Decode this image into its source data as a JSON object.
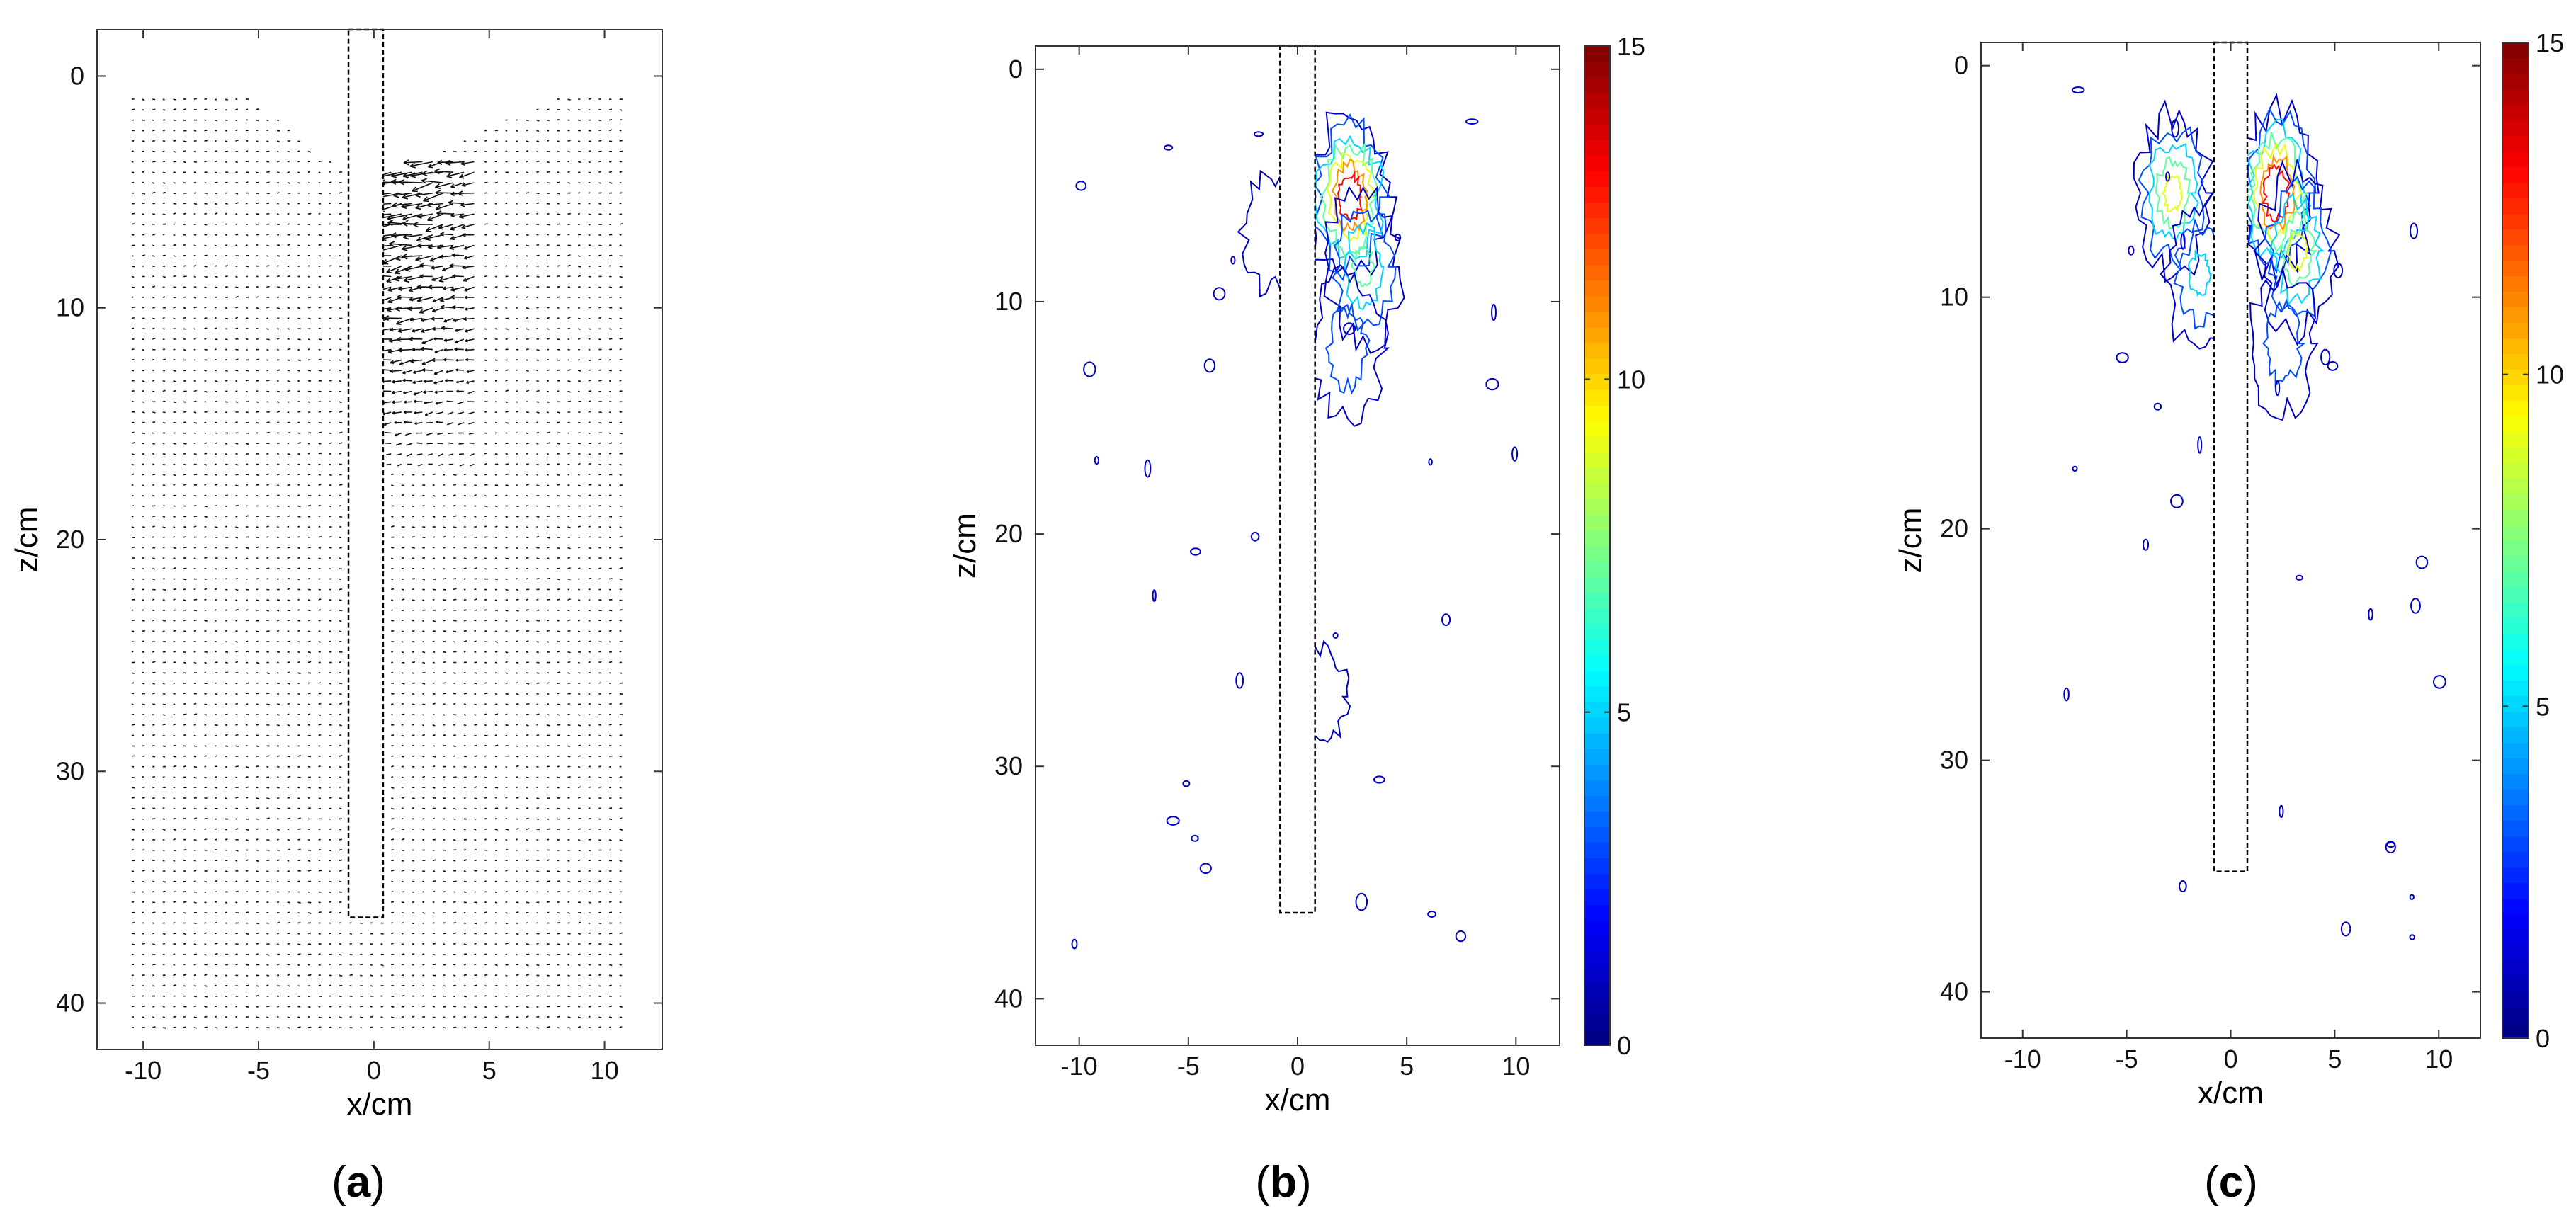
{
  "chart_data": [
    {
      "panel": "a",
      "type": "vector_field",
      "caption_letter": "a",
      "xlabel": "x/cm",
      "ylabel": "z/cm",
      "xlim": [
        -12,
        12.5
      ],
      "ylim": [
        42,
        -2
      ],
      "x_ticks": [
        -10,
        -5,
        0,
        5,
        10
      ],
      "x_tick_labels": [
        "-10",
        "-5",
        "0",
        "5",
        "10"
      ],
      "y_ticks": [
        0,
        10,
        20,
        30,
        40
      ],
      "y_tick_labels": [
        "0",
        "10",
        "20",
        "30",
        "40"
      ],
      "pile": {
        "x_min": -1.1,
        "x_max": 0.4,
        "z_top": -2,
        "z_bottom": 36.3
      },
      "field": {
        "x_min": -10.5,
        "x_max": 11,
        "z_min": 1,
        "z_max": 41.5,
        "dx": 0.45,
        "dz": 0.45
      },
      "strong_zone": {
        "x_min": 0.3,
        "x_max": 4.5,
        "z_min": 3.5,
        "z_max": 17
      },
      "grid": false
    },
    {
      "panel": "b",
      "type": "contour",
      "caption_letter": "b",
      "xlabel": "x/cm",
      "ylabel": "z/cm",
      "xlim": [
        -12,
        12
      ],
      "ylim": [
        42,
        -1
      ],
      "x_ticks": [
        -10,
        -5,
        0,
        5,
        10
      ],
      "x_tick_labels": [
        "-10",
        "-5",
        "0",
        "5",
        "10"
      ],
      "y_ticks": [
        0,
        10,
        20,
        30,
        40
      ],
      "y_tick_labels": [
        "0",
        "10",
        "20",
        "30",
        "40"
      ],
      "pile": {
        "x_min": -0.8,
        "x_max": 0.8,
        "z_top": -1,
        "z_bottom": 36.3
      },
      "colorbar": {
        "min": 0,
        "max": 15,
        "ticks": [
          0,
          5,
          10,
          15
        ],
        "tick_labels": [
          "0",
          "5",
          "10",
          "15"
        ],
        "colormap": "jet"
      },
      "contour_levels": [
        1,
        3,
        5,
        7,
        9,
        11,
        13
      ],
      "hotspots": [
        {
          "x": 2.4,
          "z": 5.5,
          "peak": 14
        },
        {
          "x": 3.0,
          "z": 8.5,
          "peak": 7
        },
        {
          "x": 2.3,
          "z": 12,
          "peak": 4
        },
        {
          "x": -1.2,
          "z": 7,
          "peak": 2
        },
        {
          "x": 1.2,
          "z": 27,
          "peak": 1.3
        }
      ],
      "grid": false
    },
    {
      "panel": "c",
      "type": "contour",
      "caption_letter": "c",
      "xlabel": "x/cm",
      "ylabel": "z/cm",
      "xlim": [
        -12,
        12
      ],
      "ylim": [
        42,
        -1
      ],
      "x_ticks": [
        -10,
        -5,
        0,
        5,
        10
      ],
      "x_tick_labels": [
        "-10",
        "-5",
        "0",
        "5",
        "10"
      ],
      "y_ticks": [
        0,
        10,
        20,
        30,
        40
      ],
      "y_tick_labels": [
        "0",
        "10",
        "20",
        "30",
        "40"
      ],
      "pile": {
        "x_min": -0.8,
        "x_max": 0.8,
        "z_top": -1,
        "z_bottom": 34.8
      },
      "colorbar": {
        "min": 0,
        "max": 15,
        "ticks": [
          0,
          5,
          10,
          15
        ],
        "tick_labels": [
          "0",
          "5",
          "10",
          "15"
        ],
        "colormap": "jet"
      },
      "contour_levels": [
        1,
        3,
        5,
        7,
        9,
        11,
        13
      ],
      "hotspots": [
        {
          "x": 2.2,
          "z": 5.5,
          "peak": 15
        },
        {
          "x": 3.2,
          "z": 8,
          "peak": 9
        },
        {
          "x": -2.8,
          "z": 5.5,
          "peak": 9
        },
        {
          "x": 2.5,
          "z": 12,
          "peak": 4
        },
        {
          "x": -1.5,
          "z": 9,
          "peak": 5
        }
      ],
      "grid": false
    }
  ]
}
